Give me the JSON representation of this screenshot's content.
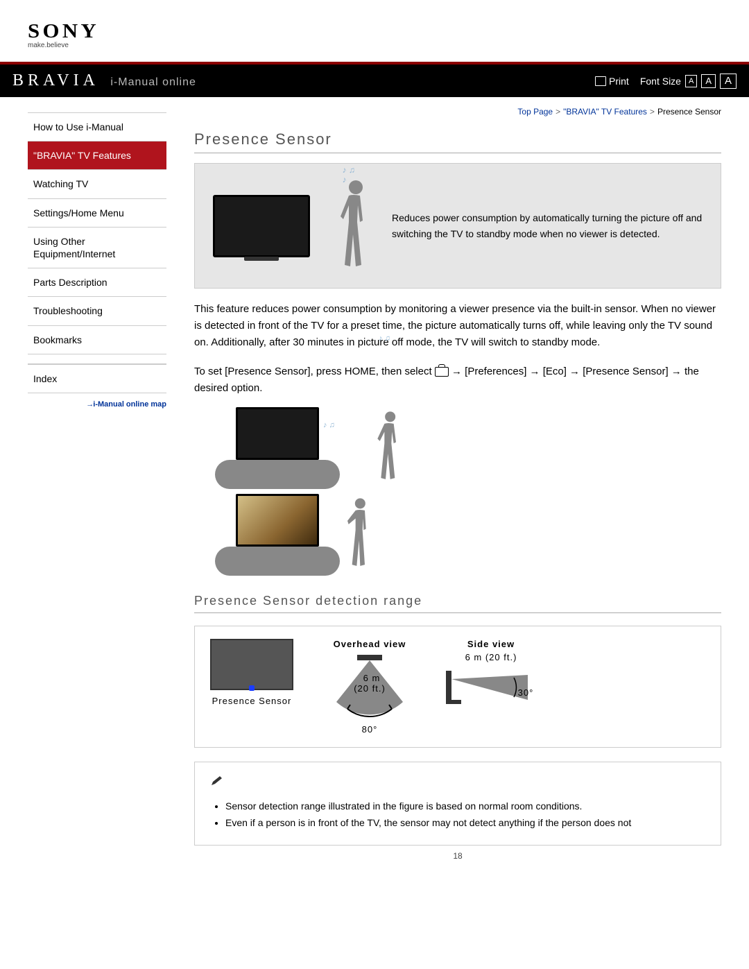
{
  "brand": {
    "logo": "SONY",
    "tagline": "make.believe",
    "product": "BRAVIA",
    "subtitle": "i-Manual online"
  },
  "toolbar": {
    "print": "Print",
    "font_size_label": "Font Size"
  },
  "breadcrumb": {
    "a": "Top Page",
    "b": "\"BRAVIA\" TV Features",
    "c": "Presence Sensor"
  },
  "nav": {
    "items": [
      "How to Use i-Manual",
      "\"BRAVIA\" TV Features",
      "Watching TV",
      "Settings/Home Menu",
      "Using Other Equipment/Internet",
      "Parts Description",
      "Troubleshooting",
      "Bookmarks"
    ],
    "index": "Index",
    "map": "i-Manual online map",
    "active_index": 1
  },
  "content": {
    "title": "Presence Sensor",
    "hero_text": "Reduces power consumption by automatically turning the picture off and switching the TV to standby mode when no viewer is detected.",
    "para1": "This feature reduces power consumption by monitoring a viewer presence via the built-in sensor. When no viewer is detected in front of the TV for a preset time, the picture automatically turns off, while leaving only the TV sound on. Additionally, after 30 minutes in picture off mode, the TV will switch to standby mode.",
    "para2a": "To set [Presence Sensor], press HOME, then select ",
    "para2b": " → [Preferences] → [Eco] → [Presence Sensor] → the desired option.",
    "h2": "Presence Sensor detection range",
    "range": {
      "sensor_label": "Presence Sensor",
      "overhead_label": "Overhead view",
      "overhead_dist": "6 m",
      "overhead_dist_ft": "(20 ft.)",
      "overhead_angle": "80°",
      "side_label": "Side view",
      "side_dist": "6 m (20 ft.)",
      "side_angle": "30°"
    },
    "notes": [
      "Sensor detection range illustrated in the figure is based on normal room conditions.",
      "Even if a person is in front of the TV, the sensor may not detect anything if the person does not"
    ]
  },
  "page_number": "18",
  "colors": {
    "accent": "#8b0000",
    "active": "#b0141d",
    "link": "#003399",
    "heading": "#555555"
  }
}
